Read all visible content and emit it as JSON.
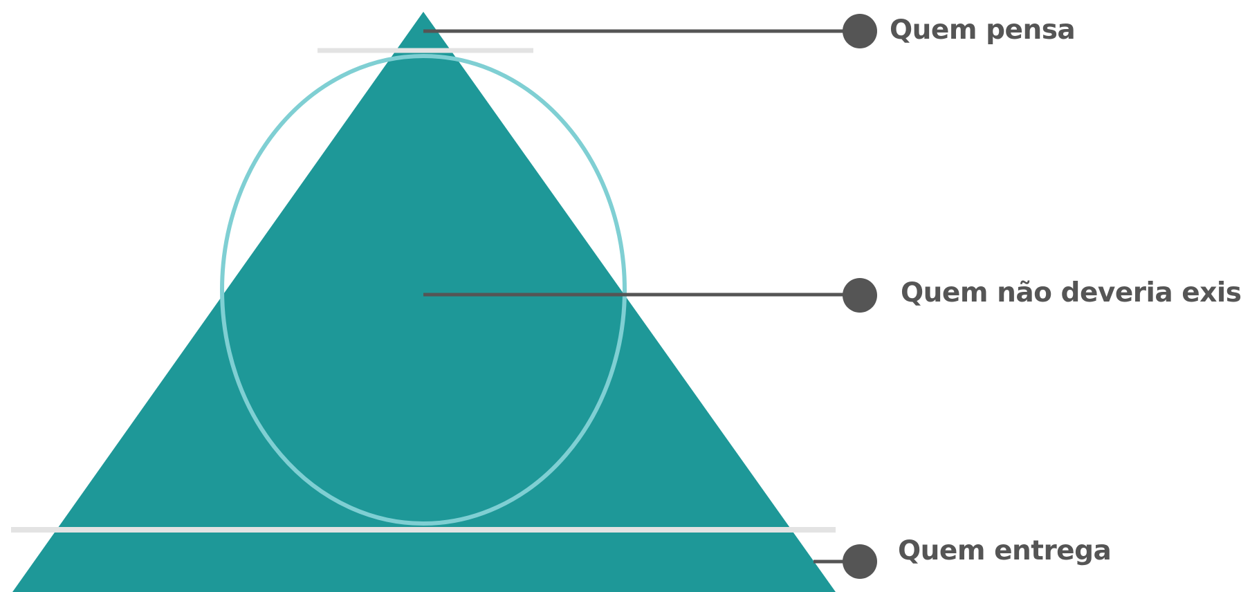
{
  "colors": {
    "pyramid_fill": "#1e9898",
    "ellipse_stroke": "#7fcfd3",
    "divider_line": "#e3e3e3",
    "connector": "#555555",
    "label_text": "#555555",
    "background": "#ffffff"
  },
  "labels": {
    "top": "Quem pensa",
    "middle": "Quem não deveria existir",
    "bottom": "Quem entrega"
  }
}
